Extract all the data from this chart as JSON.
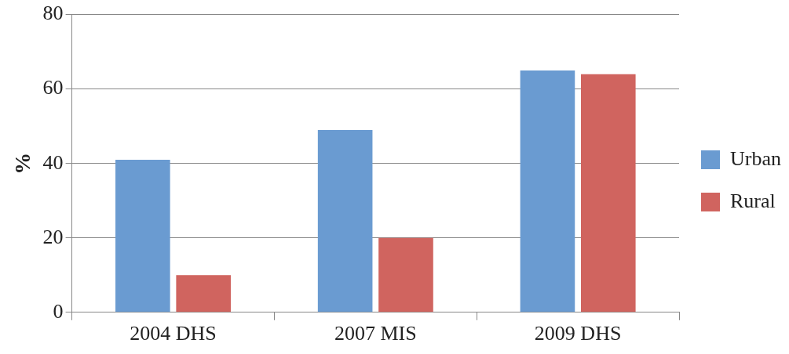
{
  "chart_data": {
    "type": "bar",
    "ylabel": "%",
    "categories": [
      "2004 DHS",
      "2007 MIS",
      "2009 DHS"
    ],
    "series": [
      {
        "name": "Urban",
        "color": "#6a9bd1",
        "values": [
          41,
          49,
          65
        ]
      },
      {
        "name": "Rural",
        "color": "#d0645f",
        "values": [
          10,
          20,
          64
        ]
      }
    ],
    "ylim": [
      0,
      80
    ],
    "yticks": [
      0,
      20,
      40,
      60,
      80
    ],
    "grid": "y",
    "legend": "right"
  }
}
